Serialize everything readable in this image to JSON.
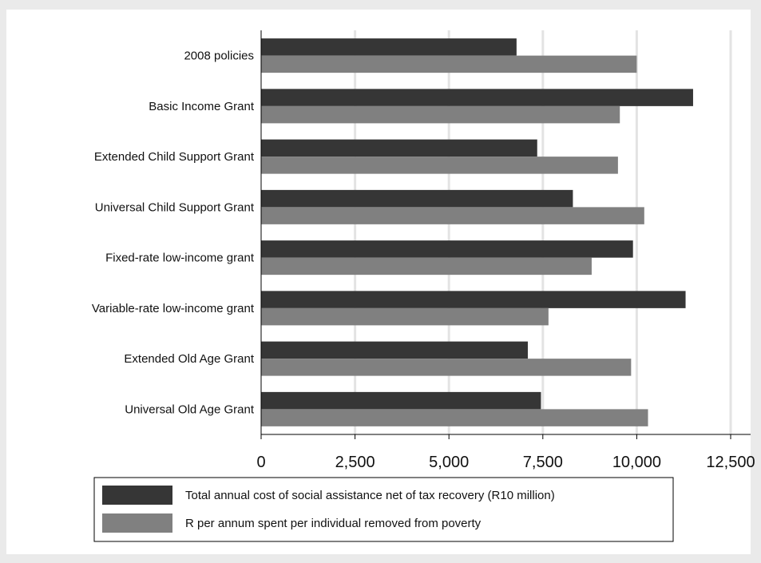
{
  "chart_data": {
    "type": "bar",
    "orientation": "horizontal",
    "title": "",
    "xlabel": "",
    "ylabel": "",
    "xlim": [
      0,
      12500
    ],
    "grid": true,
    "legend_position": "bottom",
    "categories": [
      "2008 policies",
      "Basic Income Grant",
      "Extended Child Support Grant",
      "Universal Child Support Grant",
      "Fixed-rate low-income grant",
      "Variable-rate low-income grant",
      "Extended Old Age Grant",
      "Universal Old Age Grant"
    ],
    "x_ticks": [
      0,
      2500,
      5000,
      7500,
      10000,
      12500
    ],
    "x_tick_labels": [
      "0",
      "2,500",
      "5,000",
      "7,500",
      "10,000",
      "12,500"
    ],
    "series": [
      {
        "name": "Total annual cost of social assistance net of tax recovery (R10 million)",
        "color": "#363636",
        "values": [
          6800,
          11500,
          7350,
          8300,
          9900,
          11300,
          7100,
          7450
        ]
      },
      {
        "name": "R per annum spent per individual removed from poverty",
        "color": "#808080",
        "values": [
          10000,
          9550,
          9500,
          10200,
          8800,
          7650,
          9850,
          10300
        ]
      }
    ]
  }
}
